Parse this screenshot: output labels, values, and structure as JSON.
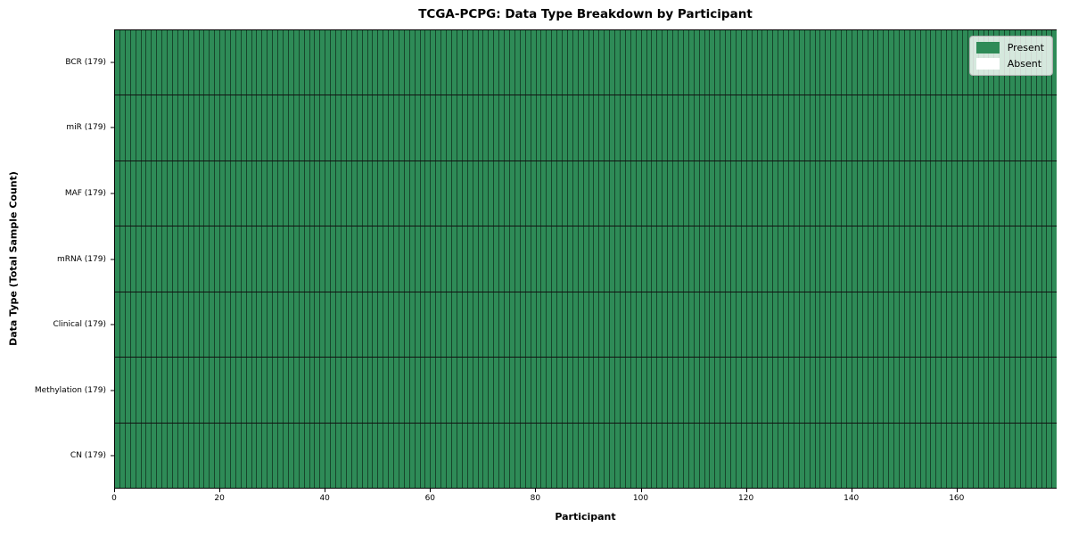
{
  "chart_data": {
    "type": "heatmap",
    "title": "TCGA-PCPG: Data Type Breakdown by Participant",
    "xlabel": "Participant",
    "ylabel": "Data Type (Total Sample Count)",
    "xlim": [
      0,
      179
    ],
    "x_ticks": [
      0,
      20,
      40,
      60,
      80,
      100,
      120,
      140,
      160
    ],
    "n_participants": 179,
    "categories": [
      "BCR (179)",
      "miR (179)",
      "MAF (179)",
      "mRNA (179)",
      "Clinical (179)",
      "Methylation (179)",
      "CN (179)"
    ],
    "rows": [
      {
        "label": "BCR (179)",
        "data_type": "BCR",
        "total_samples": 179,
        "present": 179,
        "absent": 0,
        "absent_participants": []
      },
      {
        "label": "miR (179)",
        "data_type": "miR",
        "total_samples": 179,
        "present": 179,
        "absent": 0,
        "absent_participants": []
      },
      {
        "label": "MAF (179)",
        "data_type": "MAF",
        "total_samples": 179,
        "present": 179,
        "absent": 0,
        "absent_participants": []
      },
      {
        "label": "mRNA (179)",
        "data_type": "mRNA",
        "total_samples": 179,
        "present": 179,
        "absent": 0,
        "absent_participants": []
      },
      {
        "label": "Clinical (179)",
        "data_type": "Clinical",
        "total_samples": 179,
        "present": 179,
        "absent": 0,
        "absent_participants": []
      },
      {
        "label": "Methylation (179)",
        "data_type": "Methylation",
        "total_samples": 179,
        "present": 179,
        "absent": 0,
        "absent_participants": []
      },
      {
        "label": "CN (179)",
        "data_type": "CN",
        "total_samples": 179,
        "present": 179,
        "absent": 0,
        "absent_participants": []
      }
    ],
    "legend": [
      {
        "label": "Present",
        "color": "#2e8b57"
      },
      {
        "label": "Absent",
        "color": "#ffffff"
      }
    ],
    "legend_position": "upper right",
    "grid": "cell-edges",
    "colors": {
      "present": "#2e8b57",
      "absent": "#ffffff",
      "cell_edge": "#17462c",
      "row_divider": "#111111",
      "spine": "#000000",
      "legend_border": "#b0b0b0"
    }
  }
}
